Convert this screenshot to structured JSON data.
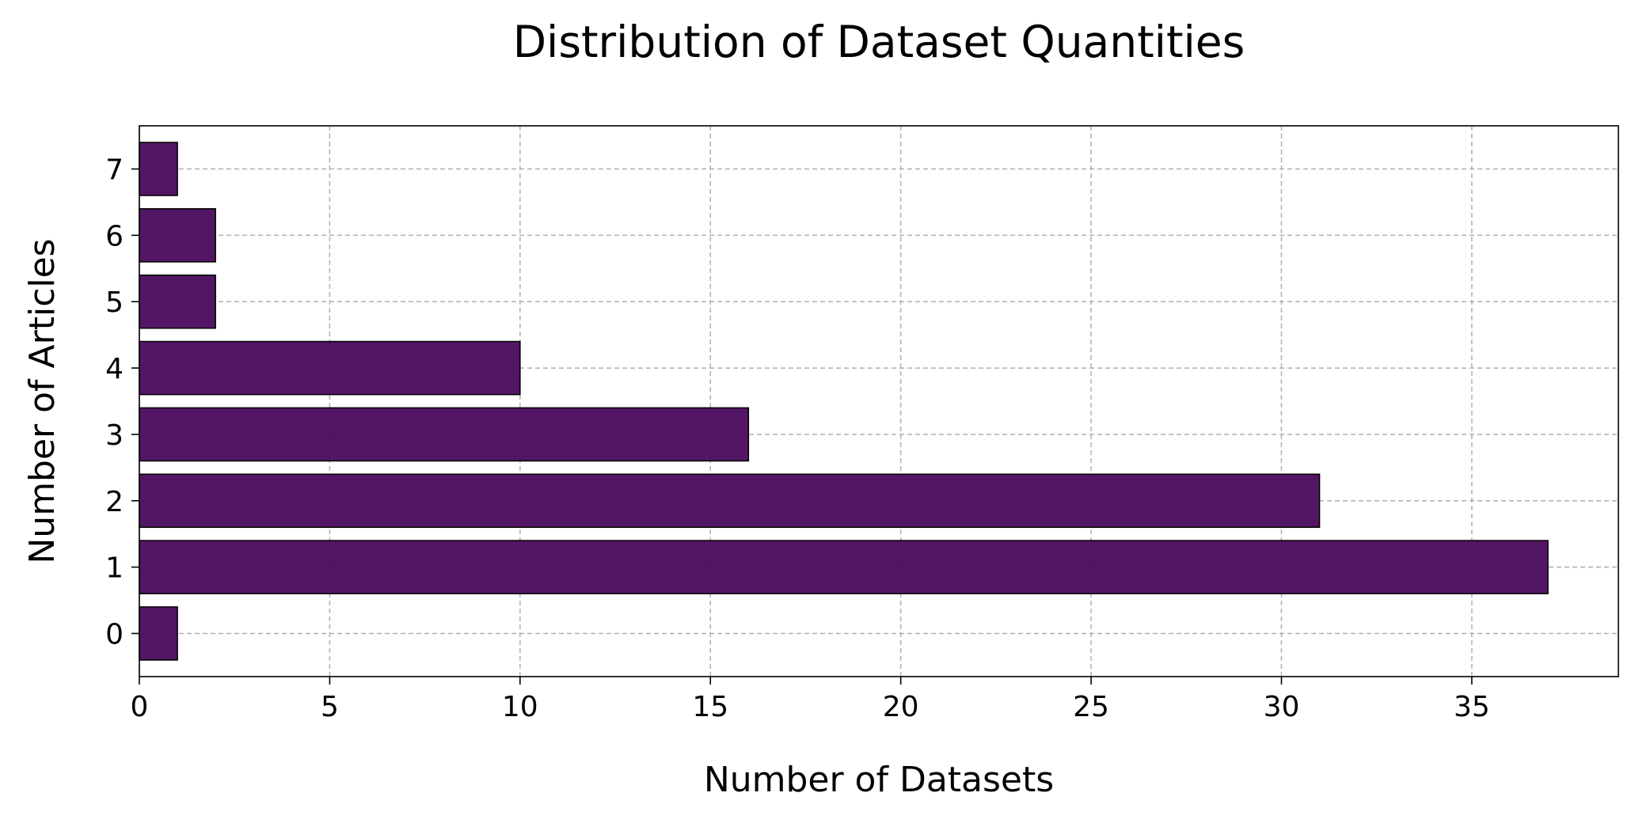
{
  "chart_data": {
    "type": "bar",
    "orientation": "horizontal",
    "title": "Distribution of Dataset Quantities",
    "xlabel": "Number of Datasets",
    "ylabel": "Number of Articles",
    "categories": [
      "0",
      "1",
      "2",
      "3",
      "4",
      "5",
      "6",
      "7"
    ],
    "values": [
      1,
      37,
      31,
      16,
      10,
      2,
      2,
      1
    ],
    "xlim": [
      0,
      38.85
    ],
    "ylim": [
      -0.65,
      7.65
    ],
    "x_ticks": [
      0,
      5,
      10,
      15,
      20,
      25,
      30,
      35
    ],
    "y_ticks": [
      0,
      1,
      2,
      3,
      4,
      5,
      6,
      7
    ],
    "grid": true,
    "bar_color": "#4a0a5c",
    "bar_edge_color": "#000000",
    "grid_color": "#b0b0b0"
  }
}
